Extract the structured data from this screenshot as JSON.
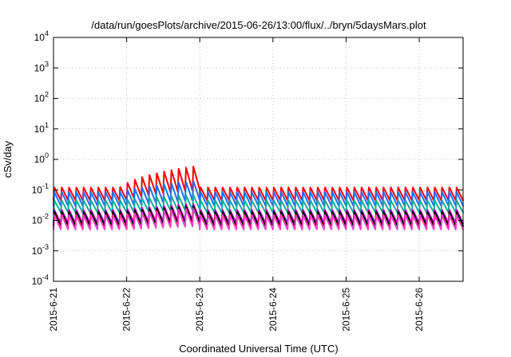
{
  "chart_data": {
    "type": "line",
    "title": "/data/run/goesPlots/archive/2015-06-26/13:00/flux/../bryn/5daysMars.plot",
    "xlabel": "Coordinated Universal Time (UTC)",
    "ylabel": "cSv/day",
    "yscale": "log",
    "ylim": [
      0.0001,
      10000
    ],
    "xlim": [
      0,
      5.6
    ],
    "grid": true,
    "legend": "none",
    "x_ticks": [
      {
        "x": 0,
        "label": "2015-6-21"
      },
      {
        "x": 1,
        "label": "2015-6-22"
      },
      {
        "x": 2,
        "label": "2015-6-23"
      },
      {
        "x": 3,
        "label": "2015-6-24"
      },
      {
        "x": 4,
        "label": "2015-6-25"
      },
      {
        "x": 5,
        "label": "2015-6-26"
      }
    ],
    "y_ticks": [
      {
        "value": 0.0001,
        "base": "10",
        "exp": "-4"
      },
      {
        "value": 0.001,
        "base": "10",
        "exp": "-3"
      },
      {
        "value": 0.01,
        "base": "10",
        "exp": "-2"
      },
      {
        "value": 0.1,
        "base": "10",
        "exp": "-1"
      },
      {
        "value": 1,
        "base": "10",
        "exp": "0"
      },
      {
        "value": 10,
        "base": "10",
        "exp": "1"
      },
      {
        "value": 100,
        "base": "10",
        "exp": "2"
      },
      {
        "value": 1000,
        "base": "10",
        "exp": "3"
      },
      {
        "value": 10000,
        "base": "10",
        "exp": "4"
      }
    ],
    "sawtooth_period_days": 0.1,
    "series": [
      {
        "color": "#ff0000",
        "base_low": 0.045,
        "base_high": 0.12,
        "event_peak": 0.6
      },
      {
        "color": "#1e6fff",
        "base_low": 0.03,
        "base_high": 0.085,
        "event_peak": 0.2
      },
      {
        "color": "#1ba89a",
        "base_low": 0.018,
        "base_high": 0.045,
        "event_peak": 0.07
      },
      {
        "color": "#c000c0",
        "base_low": 0.008,
        "base_high": 0.022,
        "event_peak": 0.035
      },
      {
        "color": "#000000",
        "base_low": 0.0065,
        "base_high": 0.019,
        "event_peak": 0.03
      },
      {
        "color": "#ff40c0",
        "base_low": 0.005,
        "base_high": 0.015,
        "event_peak": 0.025
      }
    ]
  }
}
